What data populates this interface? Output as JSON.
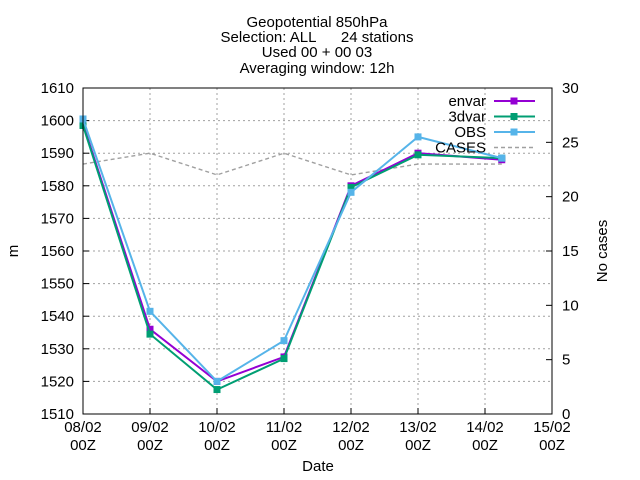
{
  "chart_data": {
    "type": "line",
    "title_lines": [
      "Geopotential 850hPa",
      "Selection: ALL      24 stations",
      "Used 00 + 00 03",
      "Averaging window: 12h"
    ],
    "xlabel": "Date",
    "ylabel": "m",
    "y2label": "No cases",
    "x_ticks": [
      {
        "top": "08/02",
        "bottom": "00Z"
      },
      {
        "top": "09/02",
        "bottom": "00Z"
      },
      {
        "top": "10/02",
        "bottom": "00Z"
      },
      {
        "top": "11/02",
        "bottom": "00Z"
      },
      {
        "top": "12/02",
        "bottom": "00Z"
      },
      {
        "top": "13/02",
        "bottom": "00Z"
      },
      {
        "top": "14/02",
        "bottom": "00Z"
      },
      {
        "top": "15/02",
        "bottom": "00Z"
      }
    ],
    "xlim": [
      0,
      7
    ],
    "ylim": [
      1510,
      1610
    ],
    "y_ticks": [
      1510,
      1520,
      1530,
      1540,
      1550,
      1560,
      1570,
      1580,
      1590,
      1600,
      1610
    ],
    "y2lim": [
      0,
      30
    ],
    "y2_ticks": [
      0,
      5,
      10,
      15,
      20,
      25,
      30
    ],
    "grid": true,
    "legend_position": "top-right",
    "series": [
      {
        "name": "envar",
        "color": "#9400d3",
        "marker": "square",
        "axis": "y",
        "x": [
          0,
          1,
          2,
          3,
          4,
          5,
          6.25
        ],
        "values": [
          1599,
          1536,
          1520,
          1527.5,
          1580,
          1590,
          1588
        ]
      },
      {
        "name": "3dvar",
        "color": "#009e73",
        "marker": "square",
        "axis": "y",
        "x": [
          0,
          1,
          2,
          3,
          4,
          5,
          6.25
        ],
        "values": [
          1598.5,
          1534.5,
          1517.5,
          1527,
          1579.5,
          1589.5,
          1588.5
        ]
      },
      {
        "name": "OBS",
        "color": "#56b4e9",
        "marker": "square",
        "axis": "y",
        "x": [
          0,
          1,
          2,
          3,
          4,
          5,
          6.25
        ],
        "values": [
          1600.5,
          1541.5,
          1520,
          1532.5,
          1578,
          1595,
          1588.5
        ]
      },
      {
        "name": "CASES",
        "color": "#a0a0a0",
        "marker": "none",
        "dashed": true,
        "axis": "y2",
        "x": [
          0,
          1,
          2,
          3,
          4,
          5,
          6.25
        ],
        "values": [
          23,
          24,
          22,
          24,
          22,
          23,
          23
        ]
      }
    ]
  }
}
